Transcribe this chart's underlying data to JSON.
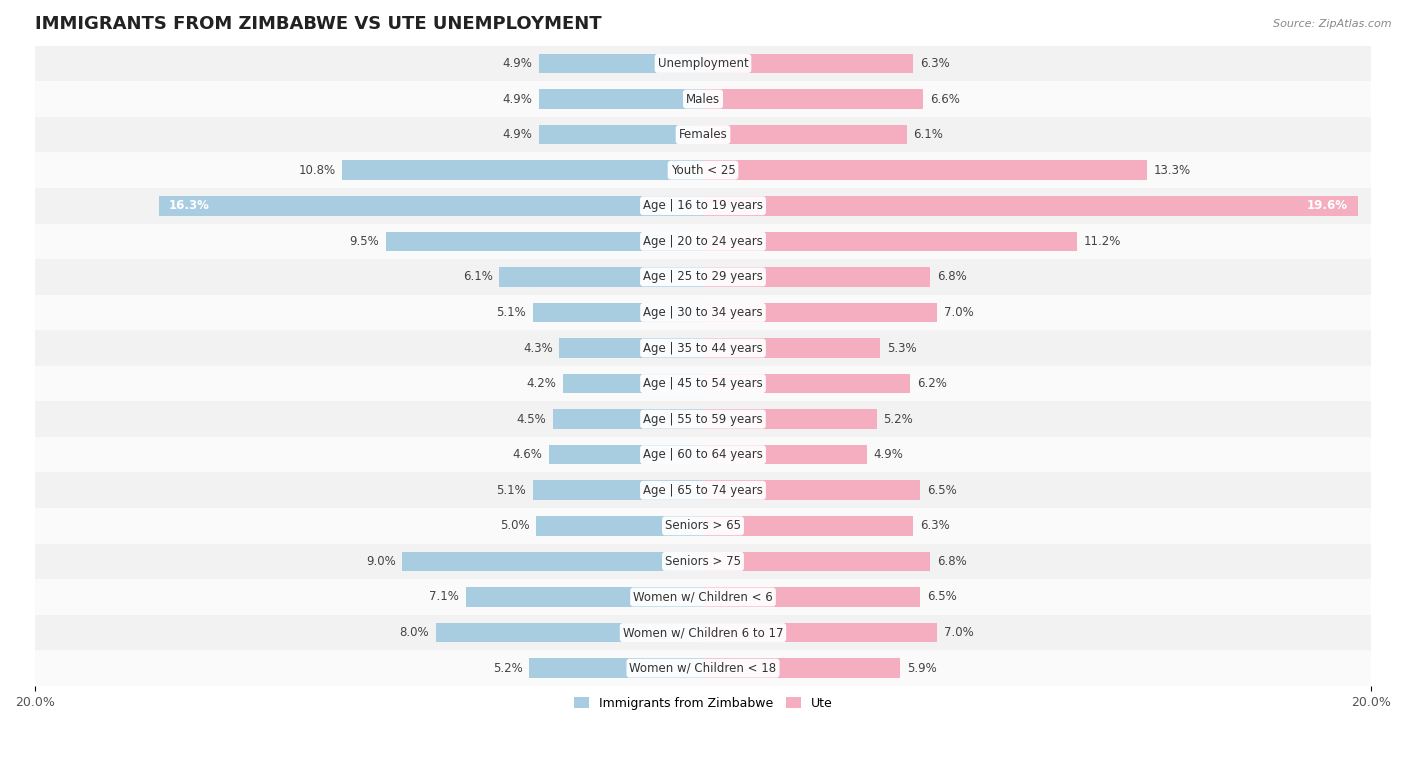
{
  "title": "IMMIGRANTS FROM ZIMBABWE VS UTE UNEMPLOYMENT",
  "source": "Source: ZipAtlas.com",
  "categories": [
    "Unemployment",
    "Males",
    "Females",
    "Youth < 25",
    "Age | 16 to 19 years",
    "Age | 20 to 24 years",
    "Age | 25 to 29 years",
    "Age | 30 to 34 years",
    "Age | 35 to 44 years",
    "Age | 45 to 54 years",
    "Age | 55 to 59 years",
    "Age | 60 to 64 years",
    "Age | 65 to 74 years",
    "Seniors > 65",
    "Seniors > 75",
    "Women w/ Children < 6",
    "Women w/ Children 6 to 17",
    "Women w/ Children < 18"
  ],
  "left_values": [
    4.9,
    4.9,
    4.9,
    10.8,
    16.3,
    9.5,
    6.1,
    5.1,
    4.3,
    4.2,
    4.5,
    4.6,
    5.1,
    5.0,
    9.0,
    7.1,
    8.0,
    5.2
  ],
  "right_values": [
    6.3,
    6.6,
    6.1,
    13.3,
    19.6,
    11.2,
    6.8,
    7.0,
    5.3,
    6.2,
    5.2,
    4.9,
    6.5,
    6.3,
    6.8,
    6.5,
    7.0,
    5.9
  ],
  "left_color": "#a8cce0",
  "right_color": "#f4aec0",
  "left_label": "Immigrants from Zimbabwe",
  "right_label": "Ute",
  "xlim": 20.0,
  "row_bg_even": "#f2f2f2",
  "row_bg_odd": "#fafafa",
  "bar_height": 0.55,
  "title_fontsize": 13,
  "cat_fontsize": 8.5,
  "value_fontsize": 8.5,
  "value_inside_threshold": 14.0
}
